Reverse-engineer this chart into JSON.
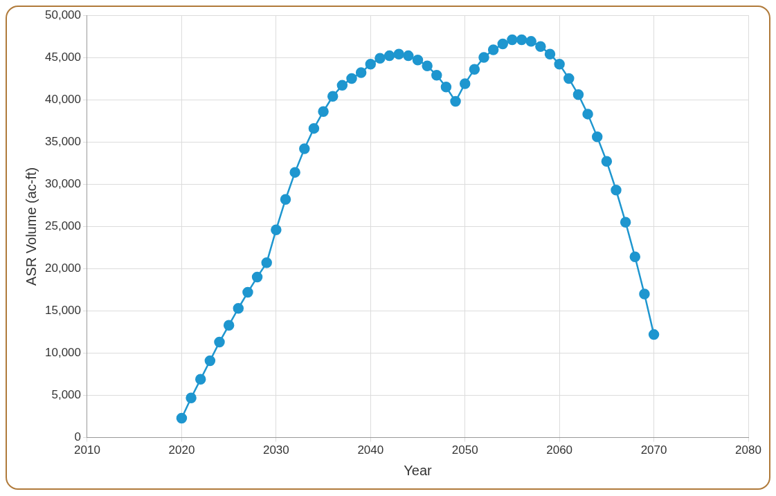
{
  "chart_data": {
    "type": "line",
    "xlabel": "Year",
    "ylabel": "ASR Volume (ac-ft)",
    "x": [
      2020,
      2021,
      2022,
      2023,
      2024,
      2025,
      2026,
      2027,
      2028,
      2029,
      2030,
      2031,
      2032,
      2033,
      2034,
      2035,
      2036,
      2037,
      2038,
      2039,
      2040,
      2041,
      2042,
      2043,
      2044,
      2045,
      2046,
      2047,
      2048,
      2049,
      2050,
      2051,
      2052,
      2053,
      2054,
      2055,
      2056,
      2057,
      2058,
      2059,
      2060,
      2061,
      2062,
      2063,
      2064,
      2065,
      2066,
      2067,
      2068,
      2069,
      2070
    ],
    "series": [
      {
        "color": "#1e96cf",
        "values": [
          2300,
          4700,
          6900,
          9100,
          11300,
          13300,
          15300,
          17200,
          19000,
          20700,
          24600,
          28200,
          31400,
          34200,
          36600,
          38600,
          40400,
          41700,
          42500,
          43200,
          44200,
          44900,
          45200,
          45400,
          45200,
          44700,
          44000,
          42900,
          41500,
          39800,
          41900,
          43600,
          45000,
          45900,
          46600,
          47100,
          47100,
          46900,
          46300,
          45400,
          44200,
          42500,
          40600,
          38300,
          35600,
          32700,
          29300,
          25500,
          21400,
          17000,
          12200
        ]
      }
    ],
    "xlim": [
      2010,
      2080
    ],
    "xticks": [
      2010,
      2020,
      2030,
      2040,
      2050,
      2060,
      2070,
      2080
    ],
    "ylim": [
      0,
      50000
    ],
    "yticks": [
      {
        "value": 0,
        "label": "0"
      },
      {
        "value": 5000,
        "label": "5,000"
      },
      {
        "value": 10000,
        "label": "10,000"
      },
      {
        "value": 15000,
        "label": "15,000"
      },
      {
        "value": 20000,
        "label": "20,000"
      },
      {
        "value": 25000,
        "label": "25,000"
      },
      {
        "value": 30000,
        "label": "30,000"
      },
      {
        "value": 35000,
        "label": "35,000"
      },
      {
        "value": 40000,
        "label": "40,000"
      },
      {
        "value": 45000,
        "label": "45,000"
      },
      {
        "value": 50000,
        "label": "50,000"
      }
    ],
    "grid": true,
    "legend": false,
    "marker": "circle",
    "line_style": "solid"
  }
}
